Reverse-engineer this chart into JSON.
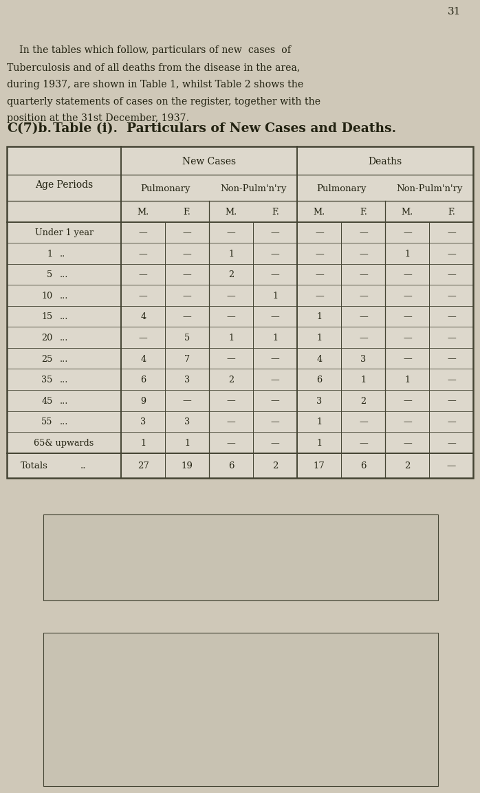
{
  "page_number": "31",
  "intro_text_lines": [
    "    In the tables which follow, particulars of new  cases  of",
    "Tuberculosis and of all deaths from the disease in the area,",
    "during 1937, are shown in Table 1, whilst Table 2 shows the",
    "quarterly statements of cases on the register, together with the",
    "position at the 31st December, 1937."
  ],
  "table_title_prefix": "C(7)b.",
  "table_title_rest": "  Table (i).  Particulars of New Cases and Deaths.",
  "col_groups": [
    "New Cases",
    "Deaths"
  ],
  "col_subgroups": [
    "Pulmonary",
    "Non-Pulm'n'ry",
    "Pulmonary",
    "Non-Pulm'n'ry"
  ],
  "col_mf": [
    "M.",
    "F.",
    "M.",
    "F.",
    "M.",
    "F.",
    "M.",
    "F."
  ],
  "row_labels": [
    [
      "Under 1 year",
      ""
    ],
    [
      "1",
      ".."
    ],
    [
      "5",
      "..."
    ],
    [
      "10",
      "..."
    ],
    [
      "15",
      "..."
    ],
    [
      "20",
      "..."
    ],
    [
      "25",
      "..."
    ],
    [
      "35",
      "..."
    ],
    [
      "45",
      "..."
    ],
    [
      "55",
      "..."
    ],
    [
      "65& upwards",
      ""
    ]
  ],
  "data": [
    [
      "—",
      "—",
      "—",
      "—",
      "—",
      "—",
      "—",
      "—"
    ],
    [
      "—",
      "—",
      "1",
      "—",
      "—",
      "—",
      "1",
      "—"
    ],
    [
      "—",
      "—",
      "2",
      "—",
      "—",
      "—",
      "—",
      "—"
    ],
    [
      "—",
      "—",
      "—",
      "1",
      "—",
      "—",
      "—",
      "—"
    ],
    [
      "4",
      "—",
      "—",
      "—",
      "1",
      "—",
      "—",
      "—"
    ],
    [
      "—",
      "5",
      "1",
      "1",
      "1",
      "—",
      "—",
      "—"
    ],
    [
      "4",
      "7",
      "—",
      "—",
      "4",
      "3",
      "—",
      "—"
    ],
    [
      "6",
      "3",
      "2",
      "—",
      "6",
      "1",
      "1",
      "—"
    ],
    [
      "9",
      "—",
      "—",
      "—",
      "3",
      "2",
      "—",
      "—"
    ],
    [
      "3",
      "3",
      "—",
      "—",
      "1",
      "—",
      "—",
      "—"
    ],
    [
      "1",
      "1",
      "—",
      "—",
      "1",
      "—",
      "—",
      "—"
    ]
  ],
  "totals_label": "Totals    ..",
  "totals": [
    "27",
    "19",
    "6",
    "2",
    "17",
    "6",
    "2",
    "—"
  ],
  "bg_color": "#cfc8b8",
  "text_color": "#222211",
  "table_bg": "#ddd8cc",
  "line_color": "#444433",
  "box1_color": "#c8c2b2",
  "box2_color": "#c8c2b2"
}
